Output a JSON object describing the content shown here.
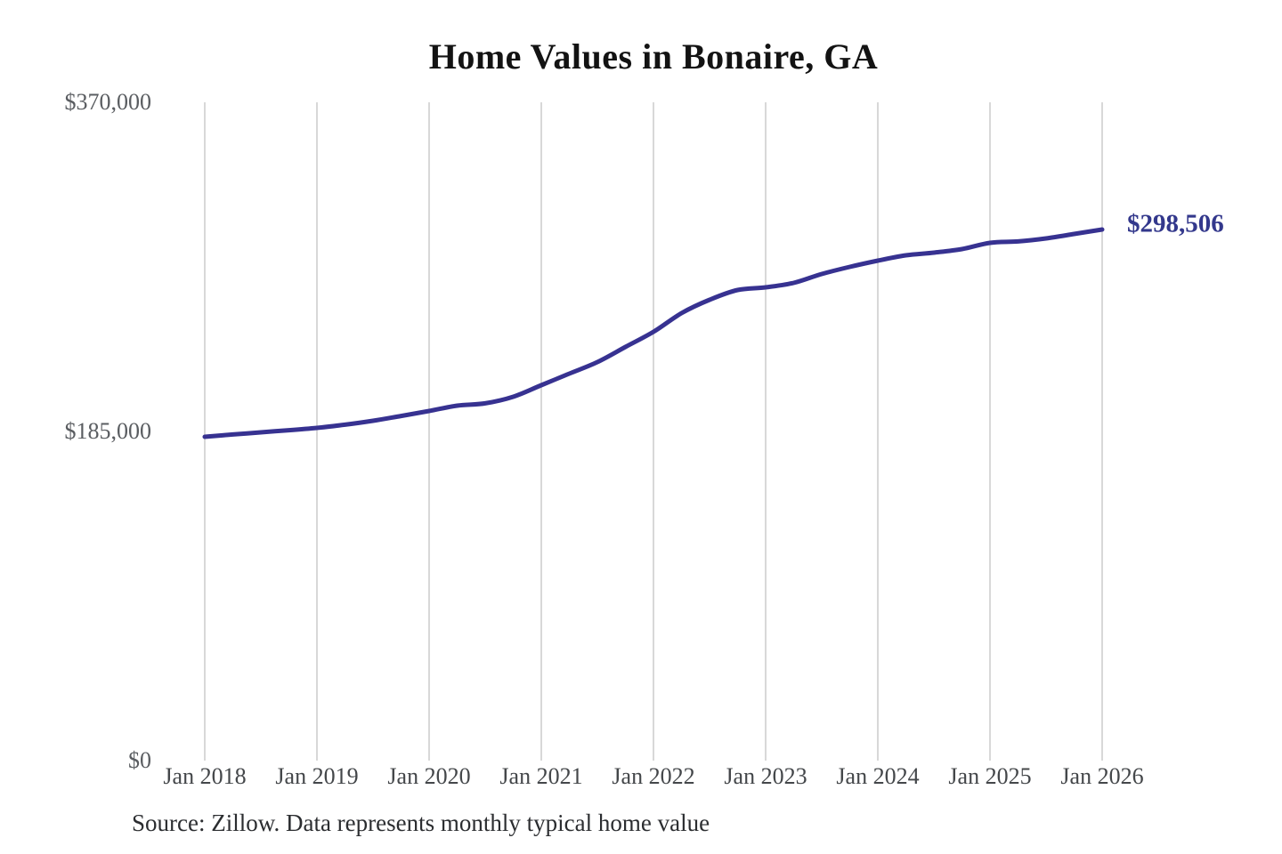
{
  "title": "Home Values in Bonaire, GA",
  "source_note": "Source: Zillow. Data represents monthly typical home value",
  "colors": {
    "line": "#373291",
    "end_label": "#33388c",
    "gridline": "#cccccc",
    "y_axis_text": "#5a5d61",
    "x_axis_text": "#44474a",
    "title_text": "#131313",
    "source_text": "#2b2d30",
    "background": "#ffffff"
  },
  "chart_data": {
    "type": "line",
    "title": "Home Values in Bonaire, GA",
    "xlabel": "",
    "ylabel": "",
    "x_tick_labels": [
      "Jan 2018",
      "Jan 2019",
      "Jan 2020",
      "Jan 2021",
      "Jan 2022",
      "Jan 2023",
      "Jan 2024",
      "Jan 2025",
      "Jan 2026"
    ],
    "x_range_years": [
      2018,
      2026
    ],
    "y_ticks": [
      {
        "label": "$370,000",
        "value": 370000
      },
      {
        "label": "$185,000",
        "value": 185000
      },
      {
        "label": "$0",
        "value": 0
      }
    ],
    "ylim": [
      0,
      370000
    ],
    "grid": "vertical-only",
    "legend": "none",
    "series": [
      {
        "name": "Monthly typical home value",
        "points": [
          [
            "2018-01",
            182000
          ],
          [
            "2018-04",
            183300
          ],
          [
            "2018-07",
            184500
          ],
          [
            "2018-10",
            185700
          ],
          [
            "2019-01",
            187000
          ],
          [
            "2019-04",
            188800
          ],
          [
            "2019-07",
            191000
          ],
          [
            "2019-10",
            193700
          ],
          [
            "2020-01",
            196500
          ],
          [
            "2020-04",
            199500
          ],
          [
            "2020-07",
            200800
          ],
          [
            "2020-10",
            204500
          ],
          [
            "2021-01",
            211000
          ],
          [
            "2021-04",
            217500
          ],
          [
            "2021-07",
            224000
          ],
          [
            "2021-10",
            232500
          ],
          [
            "2022-01",
            241000
          ],
          [
            "2022-04",
            251500
          ],
          [
            "2022-07",
            259000
          ],
          [
            "2022-10",
            264500
          ],
          [
            "2023-01",
            266000
          ],
          [
            "2023-04",
            268500
          ],
          [
            "2023-07",
            273500
          ],
          [
            "2023-10",
            277500
          ],
          [
            "2024-01",
            281000
          ],
          [
            "2024-04",
            284000
          ],
          [
            "2024-07",
            285500
          ],
          [
            "2024-10",
            287500
          ],
          [
            "2025-01",
            291000
          ],
          [
            "2025-04",
            291800
          ],
          [
            "2025-07",
            293500
          ],
          [
            "2025-10",
            296000
          ],
          [
            "2026-01",
            298506
          ]
        ]
      }
    ],
    "end_annotation": {
      "label": "$298,506",
      "value": 298506,
      "x": "2026-01"
    }
  }
}
